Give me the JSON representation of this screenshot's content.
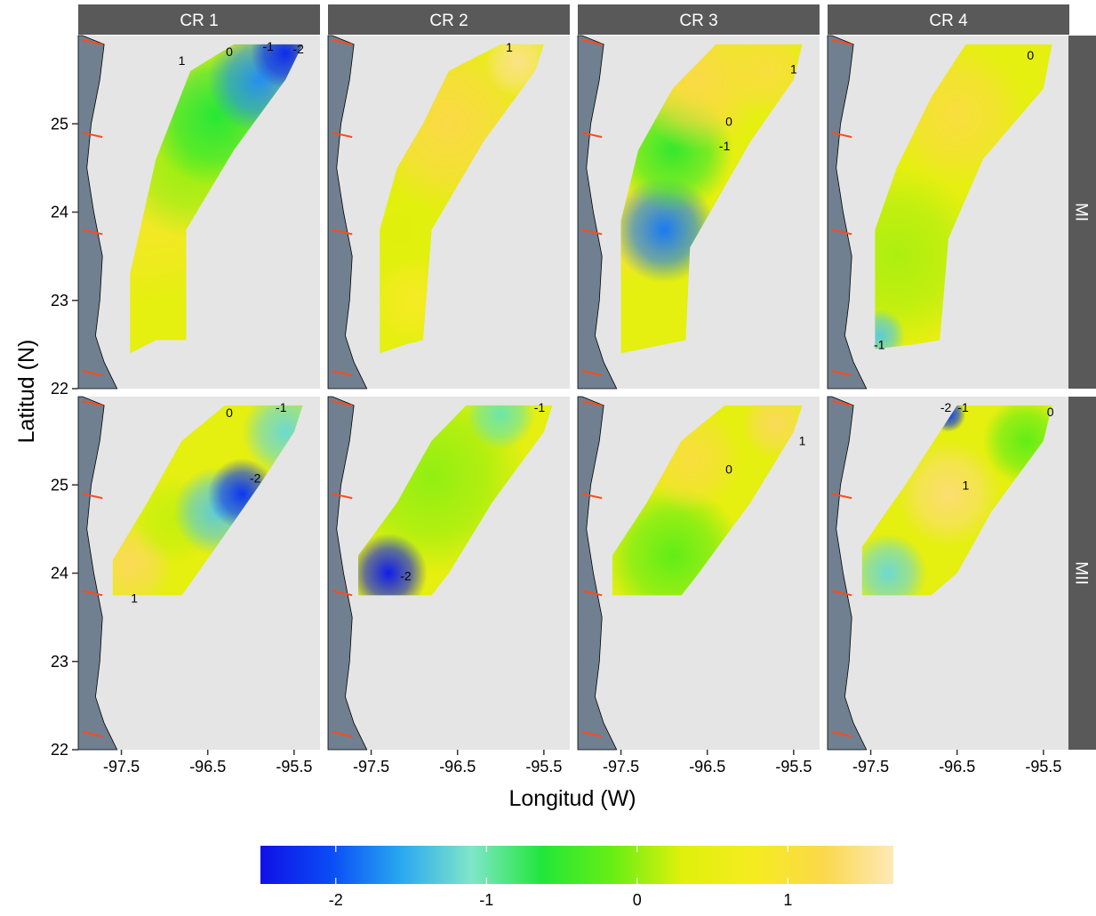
{
  "chart_data": {
    "type": "heatmap",
    "xlabel": "Longitud (W)",
    "ylabel": "Latitud (N)",
    "xlim": [
      -98.0,
      -95.2
    ],
    "ylim": [
      22.0,
      26.0
    ],
    "x_ticks": [
      -97.5,
      -96.5,
      -95.5
    ],
    "x_tick_labels": [
      "-97.5",
      "-96.5",
      "-95.5"
    ],
    "y_ticks": [
      22,
      23,
      24,
      25
    ],
    "y_tick_labels": [
      "22",
      "23",
      "24",
      "25"
    ],
    "columns": [
      "CR 1",
      "CR 2",
      "CR 3",
      "CR 4"
    ],
    "rows": [
      "MI",
      "MII"
    ],
    "colorbar": {
      "range": [
        -2.5,
        1.7
      ],
      "ticks": [
        -2,
        -1,
        0,
        1
      ],
      "tick_labels": [
        "-2",
        "-1",
        "0",
        "1"
      ],
      "colors": [
        "#1010e8",
        "#0a4cf5",
        "#2aa8f0",
        "#7fe6c8",
        "#22e63a",
        "#66ee14",
        "#e0f00c",
        "#f5ec20",
        "#fbd84a",
        "#fde9b6"
      ]
    },
    "panels": [
      {
        "row": "MI",
        "column": "CR 1",
        "contour_labels": [
          {
            "text": "1",
            "lon": -96.8,
            "lat": 25.72
          },
          {
            "text": "0",
            "lon": -96.25,
            "lat": 25.82
          },
          {
            "text": "-1",
            "lon": -95.8,
            "lat": 25.88
          },
          {
            "text": "-2",
            "lon": -95.45,
            "lat": 25.85
          }
        ]
      },
      {
        "row": "MI",
        "column": "CR 2",
        "contour_labels": [
          {
            "text": "1",
            "lon": -95.9,
            "lat": 25.87
          }
        ]
      },
      {
        "row": "MI",
        "column": "CR 3",
        "contour_labels": [
          {
            "text": "1",
            "lon": -95.5,
            "lat": 25.62
          },
          {
            "text": "0",
            "lon": -96.25,
            "lat": 25.03
          },
          {
            "text": "-1",
            "lon": -96.3,
            "lat": 24.75
          }
        ]
      },
      {
        "row": "MI",
        "column": "CR 4",
        "contour_labels": [
          {
            "text": "0",
            "lon": -95.65,
            "lat": 25.78
          },
          {
            "text": "-1",
            "lon": -97.4,
            "lat": 22.5
          }
        ]
      },
      {
        "row": "MII",
        "column": "CR 1",
        "contour_labels": [
          {
            "text": "0",
            "lon": -96.25,
            "lat": 25.82
          },
          {
            "text": "-1",
            "lon": -95.65,
            "lat": 25.88
          },
          {
            "text": "-2",
            "lon": -95.95,
            "lat": 25.08
          },
          {
            "text": "1",
            "lon": -97.35,
            "lat": 23.72
          }
        ]
      },
      {
        "row": "MII",
        "column": "CR 2",
        "contour_labels": [
          {
            "text": "-1",
            "lon": -95.55,
            "lat": 25.88
          },
          {
            "text": "-2",
            "lon": -97.1,
            "lat": 23.97
          }
        ]
      },
      {
        "row": "MII",
        "column": "CR 3",
        "contour_labels": [
          {
            "text": "0",
            "lon": -96.25,
            "lat": 25.18
          },
          {
            "text": "1",
            "lon": -95.4,
            "lat": 25.5
          }
        ]
      },
      {
        "row": "MII",
        "column": "CR 4",
        "contour_labels": [
          {
            "text": "-2",
            "lon": -96.63,
            "lat": 25.88
          },
          {
            "text": "-1",
            "lon": -96.43,
            "lat": 25.88
          },
          {
            "text": "0",
            "lon": -95.42,
            "lat": 25.83
          },
          {
            "text": "1",
            "lon": -96.4,
            "lat": 25.0
          }
        ]
      }
    ]
  }
}
